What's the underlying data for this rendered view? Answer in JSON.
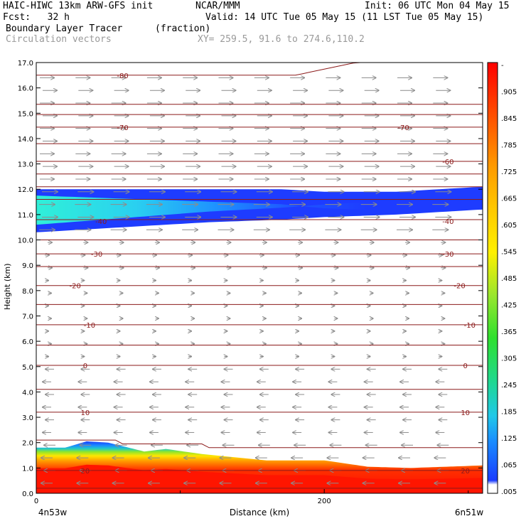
{
  "header": {
    "model": "HAIC-HIWC 13km ARW-GFS init",
    "org": "NCAR/MMM",
    "init": "Init: 06 UTC Mon 04 May 15",
    "fcst": "Fcst:   32 h",
    "valid": "Valid: 14 UTC Tue 05 May 15 (11 LST Tue 05 May 15)",
    "field": "Boundary Layer Tracer",
    "units": "(fraction)",
    "vectors": "Circulation vectors",
    "xy": "XY= 259.5, 91.6 to 274.6,110.2"
  },
  "colors": {
    "contour": "#8b1a1a",
    "vector": "#8c8c8c",
    "tracer_high": "#ff1500",
    "tracer_mid": "#ffe600",
    "tracer_low": "#1f8cff",
    "tracer_edge": "#1a3cff"
  },
  "chart_data": {
    "type": "heatmap",
    "title": "Boundary Layer Tracer",
    "xlabel": "Distance (km)",
    "ylabel": "Height (km)",
    "xlim": [
      0,
      310
    ],
    "ylim": [
      0,
      17
    ],
    "x_ticks": [
      "0",
      "200"
    ],
    "x_end_labels": {
      "left": "4n53w",
      "right": "6n51w"
    },
    "y_ticks": [
      "0.0",
      "1.0",
      "2.0",
      "3.0",
      "4.0",
      "5.0",
      "6.0",
      "7.0",
      "8.0",
      "9.0",
      "10.0",
      "11.0",
      "12.0",
      "13.0",
      "14.0",
      "15.0",
      "16.0",
      "17.0"
    ],
    "colorbar_labels": [
      "-",
      ".905",
      ".845",
      ".785",
      ".725",
      ".665",
      ".605",
      ".545",
      ".485",
      ".425",
      ".365",
      ".305",
      ".245",
      ".185",
      ".125",
      ".065",
      ".005"
    ],
    "contour_labels": [
      {
        "text": "-80",
        "x": 60,
        "y": 16.5
      },
      {
        "text": "-70",
        "x": 60,
        "y": 14.45
      },
      {
        "text": "-70",
        "x": 255,
        "y": 14.45
      },
      {
        "text": "-60",
        "x": 286,
        "y": 13.1
      },
      {
        "text": "-40",
        "x": 45,
        "y": 10.75
      },
      {
        "text": "-40",
        "x": 286,
        "y": 10.75
      },
      {
        "text": "-30",
        "x": 42,
        "y": 9.45
      },
      {
        "text": "-30",
        "x": 286,
        "y": 9.45
      },
      {
        "text": "-20",
        "x": 27,
        "y": 8.2
      },
      {
        "text": "-20",
        "x": 294,
        "y": 8.2
      },
      {
        "text": "-10",
        "x": 37,
        "y": 6.65
      },
      {
        "text": "-10",
        "x": 301,
        "y": 6.65
      },
      {
        "text": "0",
        "x": 34,
        "y": 5.05
      },
      {
        "text": "0",
        "x": 298,
        "y": 5.05
      },
      {
        "text": "10",
        "x": 34,
        "y": 3.2
      },
      {
        "text": "10",
        "x": 298,
        "y": 3.2
      },
      {
        "text": "20",
        "x": 34,
        "y": 0.9
      },
      {
        "text": "20",
        "x": 298,
        "y": 0.9
      }
    ],
    "temperature_contour_heights_km": [
      0.2,
      0.9,
      2.1,
      3.2,
      4.1,
      5.05,
      5.85,
      6.65,
      7.45,
      8.2,
      8.95,
      9.45,
      10.0,
      10.8,
      11.6,
      12.1,
      12.6,
      13.1,
      13.8,
      14.45,
      14.95,
      15.35,
      16.5
    ],
    "tracer_layers": [
      {
        "name": "upper",
        "x": [
          0,
          60,
          120,
          170,
          200,
          250,
          310
        ],
        "bottom_km": [
          10.3,
          10.5,
          10.7,
          10.8,
          10.9,
          11.0,
          11.2
        ],
        "top_km": [
          12.0,
          12.0,
          12.0,
          12.0,
          11.9,
          11.9,
          12.1
        ]
      },
      {
        "name": "boundary",
        "x": [
          0,
          20,
          35,
          50,
          75,
          90,
          115,
          160,
          200,
          230,
          260,
          310
        ],
        "top_km": [
          1.8,
          1.8,
          2.05,
          2.0,
          1.65,
          1.75,
          1.55,
          1.3,
          1.3,
          1.05,
          1.0,
          1.1
        ]
      }
    ],
    "grid": false,
    "legend": "right"
  },
  "axis_titles": {
    "y": "Height (km)",
    "x": "Distance (km)"
  }
}
